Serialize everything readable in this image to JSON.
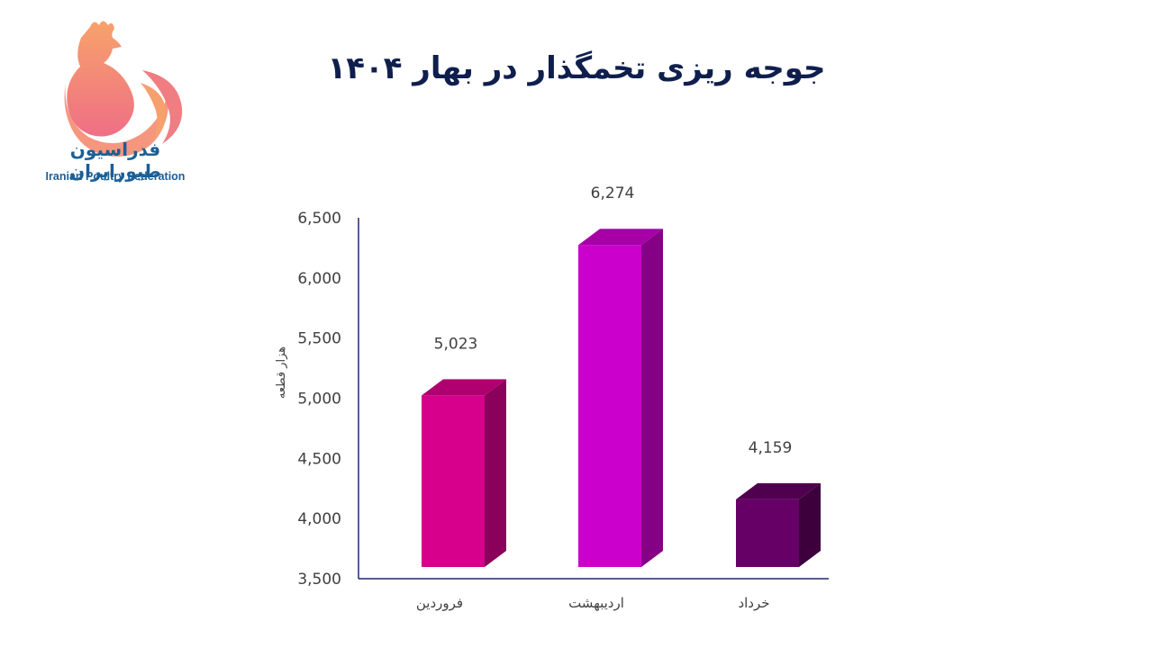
{
  "header": {
    "title": "جوجه ریزی تخمگذار در بهار ۱۴۰۴"
  },
  "logo": {
    "name_fa": "فدراسیون طیورایران",
    "name_en": "Iranian Poultry Federation",
    "icon": "rooster-logo-icon"
  },
  "chart_data": {
    "type": "bar",
    "categories": [
      "فروردین",
      "اردیبهشت",
      "خرداد"
    ],
    "values": [
      5023,
      6274,
      4159
    ],
    "data_labels": [
      "5,023",
      "6,274",
      "4,159"
    ],
    "colors": [
      "#d6008c",
      "#cc00cc",
      "#660066"
    ],
    "side_colors": [
      "#8a005a",
      "#850085",
      "#3d003d"
    ],
    "top_colors": [
      "#b0006f",
      "#a600a6",
      "#4f004f"
    ],
    "ylabel": "هزار قطعه",
    "xlabel": "",
    "ylim": [
      3500,
      6500
    ],
    "yticks": [
      3500,
      4000,
      4500,
      5000,
      5500,
      6000,
      6500
    ],
    "ytick_labels": [
      "3,500",
      "4,000",
      "4,500",
      "5,000",
      "5,500",
      "6,000",
      "6,500"
    ],
    "grid": false,
    "bar_style": "3d"
  }
}
